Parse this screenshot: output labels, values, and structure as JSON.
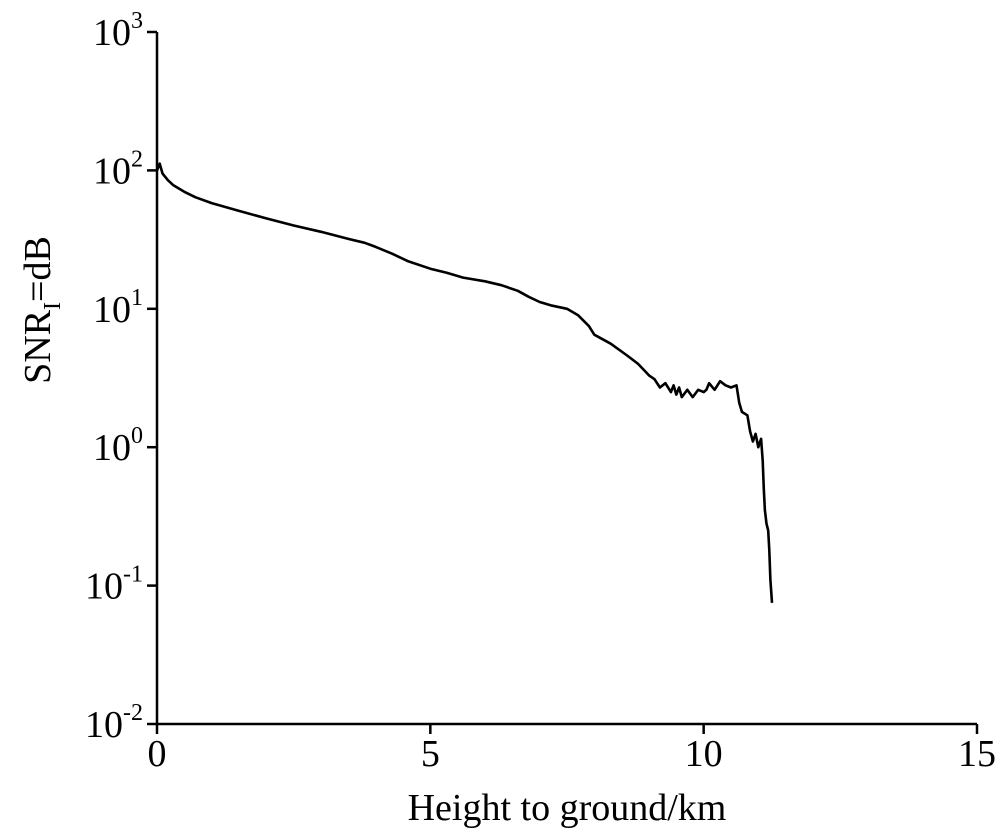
{
  "chart_data": {
    "type": "line",
    "title": "",
    "xlabel": "Height to ground/km",
    "ylabel": {
      "main": "SNR",
      "subscript": "I",
      "suffix": "=dB"
    },
    "xlim": [
      0,
      15
    ],
    "ylim": [
      0.01,
      1000
    ],
    "yscale": "log",
    "grid": false,
    "legend": "none",
    "x_ticks": [
      "0",
      "5",
      "10",
      "15"
    ],
    "x_tick_values": [
      0,
      5,
      10,
      15
    ],
    "y_ticks": [
      {
        "base": "10",
        "exp": "-2",
        "value": 0.01
      },
      {
        "base": "10",
        "exp": "-1",
        "value": 0.1
      },
      {
        "base": "10",
        "exp": "0",
        "value": 1
      },
      {
        "base": "10",
        "exp": "1",
        "value": 10
      },
      {
        "base": "10",
        "exp": "2",
        "value": 100
      },
      {
        "base": "10",
        "exp": "3",
        "value": 1000
      }
    ],
    "series": [
      {
        "color": "#000000",
        "x": [
          0.0,
          0.05,
          0.1,
          0.2,
          0.3,
          0.5,
          0.7,
          1.0,
          1.5,
          2.0,
          2.5,
          3.0,
          3.5,
          3.8,
          4.0,
          4.3,
          4.6,
          5.0,
          5.3,
          5.6,
          6.0,
          6.3,
          6.6,
          6.8,
          7.0,
          7.2,
          7.5,
          7.7,
          7.9,
          8.0,
          8.3,
          8.6,
          8.8,
          9.0,
          9.1,
          9.2,
          9.3,
          9.4,
          9.45,
          9.5,
          9.55,
          9.6,
          9.7,
          9.8,
          9.9,
          10.0,
          10.05,
          10.1,
          10.2,
          10.3,
          10.4,
          10.5,
          10.6,
          10.65,
          10.7,
          10.8,
          10.85,
          10.9,
          10.95,
          11.0,
          11.05,
          11.08,
          11.1,
          11.12,
          11.15,
          11.18,
          11.2,
          11.22,
          11.25
        ],
        "y": [
          100,
          112,
          95,
          85,
          78,
          70,
          64,
          58,
          51,
          45,
          40,
          36,
          32,
          30,
          28,
          25,
          22,
          19.5,
          18.2,
          16.8,
          15.8,
          14.8,
          13.5,
          12.2,
          11.2,
          10.6,
          10.0,
          9.0,
          7.5,
          6.5,
          5.6,
          4.6,
          4.0,
          3.3,
          3.1,
          2.7,
          2.9,
          2.5,
          2.8,
          2.4,
          2.7,
          2.3,
          2.6,
          2.3,
          2.6,
          2.5,
          2.6,
          2.9,
          2.6,
          3.0,
          2.8,
          2.7,
          2.8,
          2.1,
          1.8,
          1.7,
          1.3,
          1.1,
          1.25,
          1.0,
          1.15,
          0.8,
          0.5,
          0.35,
          0.28,
          0.25,
          0.18,
          0.11,
          0.075
        ]
      }
    ]
  }
}
